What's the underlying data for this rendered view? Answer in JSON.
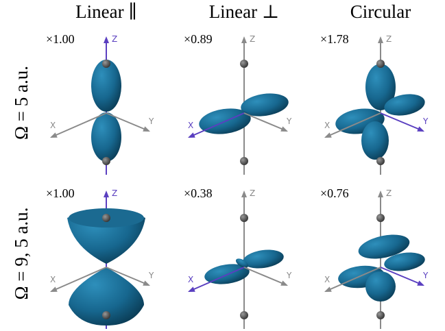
{
  "columns": [
    "Linear ∥",
    "Linear ⊥",
    "Circular"
  ],
  "rows": [
    {
      "label": "Ω = 5 a.u.",
      "scales": [
        "×1.00",
        "×0.89",
        "×1.78"
      ]
    },
    {
      "label": "Ω = 9, 5 a.u.",
      "scales": [
        "×1.00",
        "×0.38",
        "×0.76"
      ]
    }
  ],
  "axes": {
    "x": "X",
    "y": "Y",
    "z": "Z"
  }
}
